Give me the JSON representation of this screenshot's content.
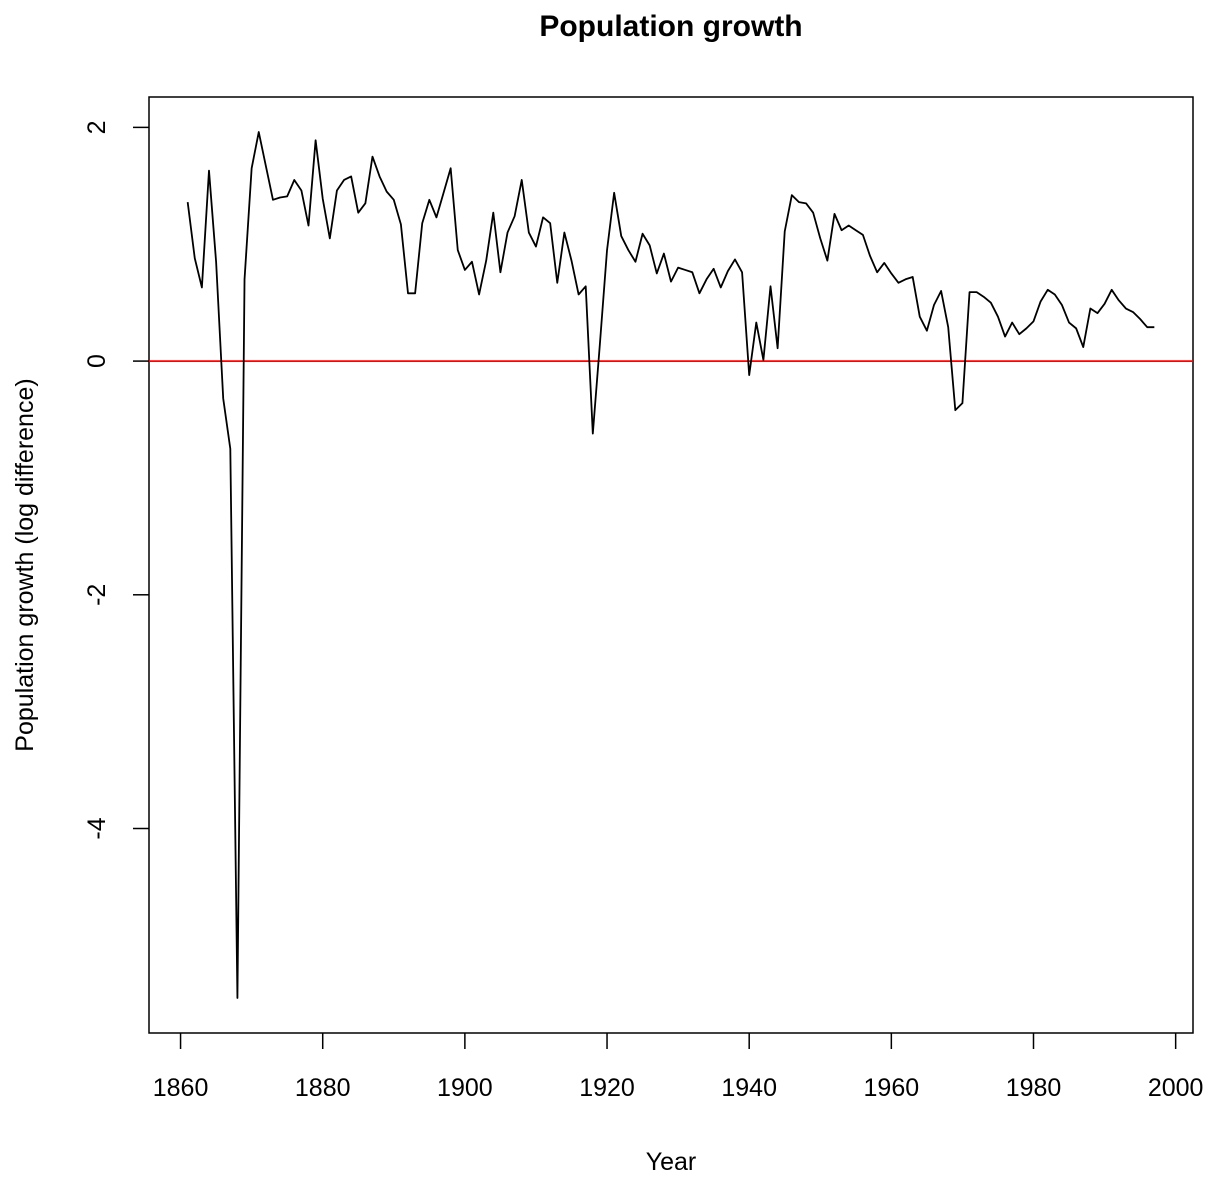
{
  "chart_data": {
    "type": "line",
    "title": "Population growth",
    "xlabel": "Year",
    "ylabel": "Population growth (log difference)",
    "x": [
      1861,
      1862,
      1863,
      1864,
      1865,
      1866,
      1867,
      1868,
      1869,
      1870,
      1871,
      1872,
      1873,
      1874,
      1875,
      1876,
      1877,
      1878,
      1879,
      1880,
      1881,
      1882,
      1883,
      1884,
      1885,
      1886,
      1887,
      1888,
      1889,
      1890,
      1891,
      1892,
      1893,
      1894,
      1895,
      1896,
      1897,
      1898,
      1899,
      1900,
      1901,
      1902,
      1903,
      1904,
      1905,
      1906,
      1907,
      1908,
      1909,
      1910,
      1911,
      1912,
      1913,
      1914,
      1915,
      1916,
      1917,
      1918,
      1919,
      1920,
      1921,
      1922,
      1923,
      1924,
      1925,
      1926,
      1927,
      1928,
      1929,
      1930,
      1931,
      1932,
      1933,
      1934,
      1935,
      1936,
      1937,
      1938,
      1939,
      1940,
      1941,
      1942,
      1943,
      1944,
      1945,
      1946,
      1947,
      1948,
      1949,
      1950,
      1951,
      1952,
      1953,
      1954,
      1955,
      1956,
      1957,
      1958,
      1959,
      1960,
      1961,
      1962,
      1963,
      1964,
      1965,
      1966,
      1967,
      1968,
      1969,
      1970,
      1971,
      1972,
      1973,
      1974,
      1975,
      1976,
      1977,
      1978,
      1979,
      1980,
      1981,
      1982,
      1983,
      1984,
      1985,
      1986,
      1987,
      1988,
      1989,
      1990,
      1991,
      1992,
      1993,
      1994,
      1995,
      1996,
      1997
    ],
    "series": [
      {
        "color": "#000000",
        "values": [
          1.36,
          0.88,
          0.63,
          1.63,
          0.85,
          -0.32,
          -0.75,
          -5.45,
          0.7,
          1.65,
          1.96,
          1.67,
          1.38,
          1.4,
          1.41,
          1.55,
          1.46,
          1.16,
          1.89,
          1.39,
          1.05,
          1.46,
          1.55,
          1.58,
          1.27,
          1.35,
          1.75,
          1.58,
          1.45,
          1.38,
          1.17,
          0.58,
          0.58,
          1.18,
          1.38,
          1.23,
          1.44,
          1.65,
          0.95,
          0.78,
          0.85,
          0.57,
          0.86,
          1.27,
          0.76,
          1.1,
          1.24,
          1.55,
          1.1,
          0.98,
          1.23,
          1.18,
          0.67,
          1.1,
          0.86,
          0.57,
          0.64,
          -0.62,
          0.15,
          0.95,
          1.44,
          1.07,
          0.95,
          0.85,
          1.09,
          0.99,
          0.75,
          0.92,
          0.68,
          0.8,
          0.78,
          0.76,
          0.58,
          0.7,
          0.79,
          0.63,
          0.77,
          0.87,
          0.76,
          -0.12,
          0.33,
          0.01,
          0.64,
          0.11,
          1.11,
          1.42,
          1.36,
          1.35,
          1.27,
          1.05,
          0.86,
          1.26,
          1.12,
          1.16,
          1.12,
          1.08,
          0.9,
          0.76,
          0.84,
          0.75,
          0.67,
          0.7,
          0.72,
          0.38,
          0.26,
          0.48,
          0.6,
          0.29,
          -0.42,
          -0.36,
          0.59,
          0.59,
          0.55,
          0.5,
          0.38,
          0.21,
          0.33,
          0.23,
          0.28,
          0.34,
          0.51,
          0.61,
          0.57,
          0.48,
          0.33,
          0.28,
          0.12,
          0.45,
          0.41,
          0.49,
          0.61,
          0.52,
          0.45,
          0.42,
          0.36,
          0.29,
          0.29
        ]
      }
    ],
    "hline": {
      "value": 0,
      "color": "#ff0000"
    },
    "xlim": [
      1855.56,
      2002.44
    ],
    "xticks": [
      1860,
      1880,
      1900,
      1920,
      1940,
      1960,
      1980,
      2000
    ],
    "ylim": [
      -5.75,
      2.26
    ],
    "yticks": [
      -4,
      -2,
      0,
      2
    ]
  }
}
